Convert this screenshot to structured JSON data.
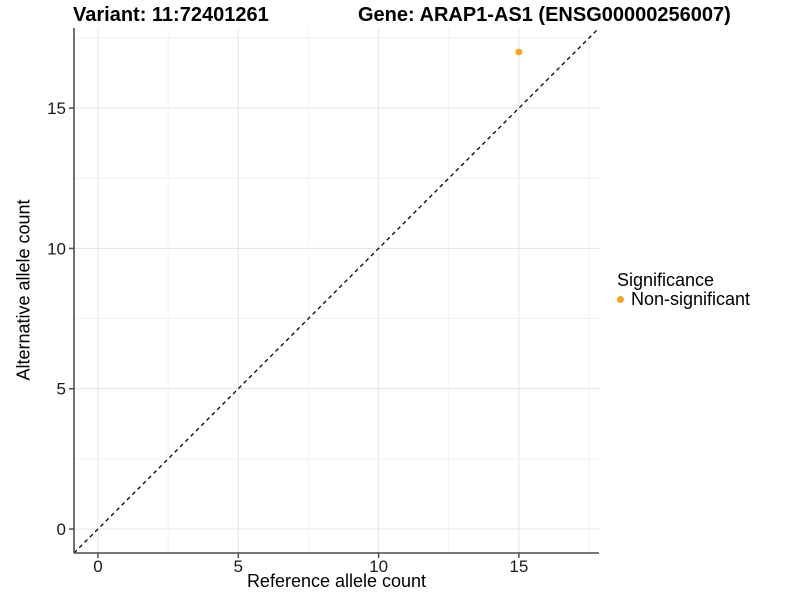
{
  "chart_data": {
    "type": "scatter",
    "title_left": "Variant: 11:72401261",
    "title_right": "Gene: ARAP1-AS1 (ENSG00000256007)",
    "xlabel": "Reference allele count",
    "ylabel": "Alternative allele count",
    "xlim": [
      -0.855,
      17.855
    ],
    "ylim": [
      -0.855,
      17.855
    ],
    "x_major_ticks": [
      0,
      5,
      10,
      15
    ],
    "y_major_ticks": [
      0,
      5,
      10,
      15
    ],
    "x_minor_ticks": [
      2.5,
      7.5,
      12.5,
      17.5
    ],
    "y_minor_ticks": [
      2.5,
      7.5,
      12.5,
      17.5
    ],
    "grid": true,
    "reference_line": {
      "type": "identity-y-equals-x",
      "style": "dashed",
      "color": "#000000"
    },
    "series": [
      {
        "name": "Non-significant",
        "color": "#FAA31E",
        "points": [
          {
            "x": 15,
            "y": 17
          }
        ]
      }
    ],
    "legend": {
      "title": "Significance",
      "position": "right",
      "entries": [
        {
          "label": "Non-significant",
          "color": "#FAA31E"
        }
      ]
    },
    "theme": {
      "grid_major": "#E7E7E7",
      "grid_minor": "#F2F2F2",
      "axis_line": "#4D4D4D",
      "tick_label": "#1A1A1A",
      "background": "#FFFFFF"
    }
  }
}
